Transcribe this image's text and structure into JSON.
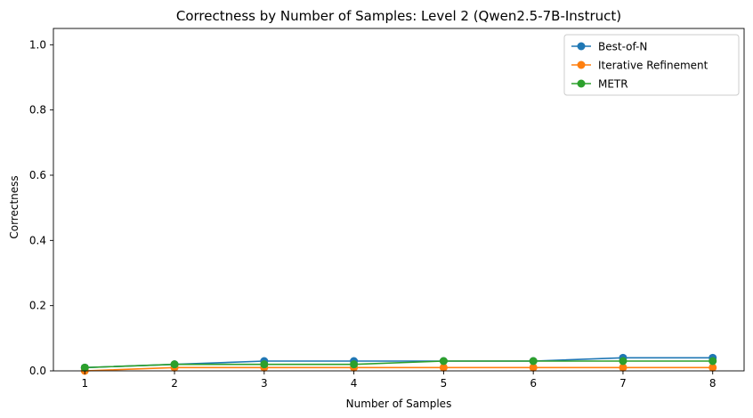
{
  "chart_data": {
    "type": "line",
    "title": "Correctness by Number of Samples: Level 2 (Qwen2.5-7B-Instruct)",
    "xlabel": "Number of Samples",
    "ylabel": "Correctness",
    "x": [
      1,
      2,
      3,
      4,
      5,
      6,
      7,
      8
    ],
    "x_ticks": [
      "1",
      "2",
      "3",
      "4",
      "5",
      "6",
      "7",
      "8"
    ],
    "y_ticks": [
      "0.0",
      "0.2",
      "0.4",
      "0.6",
      "0.8",
      "1.0"
    ],
    "xlim": [
      0.65,
      8.35
    ],
    "ylim": [
      0,
      1.05
    ],
    "grid": false,
    "legend_position": "top-right",
    "series": [
      {
        "name": "Best-of-N",
        "color": "#1f77b4",
        "marker": "circle",
        "values": [
          0.01,
          0.02,
          0.03,
          0.03,
          0.03,
          0.03,
          0.04,
          0.04
        ]
      },
      {
        "name": "Iterative Refinement",
        "color": "#ff7f0e",
        "marker": "circle",
        "values": [
          0.0,
          0.01,
          0.01,
          0.01,
          0.01,
          0.01,
          0.01,
          0.01
        ]
      },
      {
        "name": "METR",
        "color": "#2ca02c",
        "marker": "circle",
        "values": [
          0.01,
          0.02,
          0.02,
          0.02,
          0.03,
          0.03,
          0.03,
          0.03
        ]
      }
    ]
  }
}
